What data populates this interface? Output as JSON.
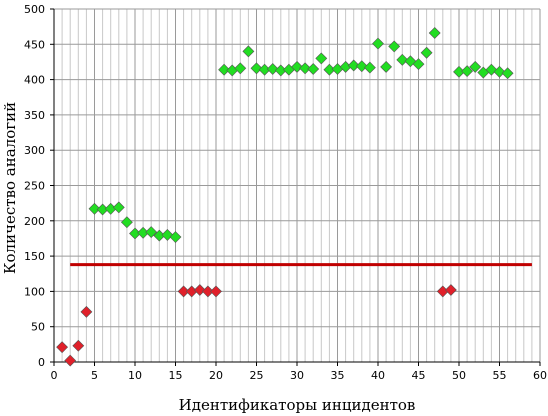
{
  "chart_data": {
    "type": "scatter",
    "xlabel": "Идентификаторы инцидентов",
    "ylabel": "Количество аналогий",
    "xlim": [
      0,
      60
    ],
    "ylim": [
      0,
      500
    ],
    "x_ticks": [
      0,
      5,
      10,
      15,
      20,
      25,
      30,
      35,
      40,
      45,
      50,
      55,
      60
    ],
    "y_ticks": [
      0,
      50,
      100,
      150,
      200,
      250,
      300,
      350,
      400,
      450,
      500
    ],
    "grid": true,
    "minor_x_step": 1,
    "threshold_line": {
      "y": 138,
      "x_from": 2,
      "x_to": 59,
      "color": "#c00000"
    },
    "series": [
      {
        "color": "#e0202a",
        "points": [
          [
            1,
            21
          ],
          [
            2,
            2
          ],
          [
            3,
            23
          ],
          [
            4,
            71
          ],
          [
            16,
            100
          ],
          [
            17,
            100
          ],
          [
            18,
            102
          ],
          [
            19,
            100
          ],
          [
            20,
            100
          ],
          [
            48,
            100
          ],
          [
            49,
            102
          ]
        ]
      },
      {
        "color": "#22dd22",
        "points": [
          [
            5,
            217
          ],
          [
            6,
            216
          ],
          [
            7,
            217
          ],
          [
            8,
            219
          ],
          [
            9,
            198
          ],
          [
            10,
            182
          ],
          [
            11,
            183
          ],
          [
            12,
            184
          ],
          [
            13,
            179
          ],
          [
            14,
            180
          ],
          [
            15,
            177
          ],
          [
            21,
            414
          ],
          [
            22,
            413
          ],
          [
            23,
            416
          ],
          [
            24,
            440
          ],
          [
            25,
            416
          ],
          [
            26,
            414
          ],
          [
            27,
            415
          ],
          [
            28,
            413
          ],
          [
            29,
            414
          ],
          [
            30,
            418
          ],
          [
            31,
            416
          ],
          [
            32,
            415
          ],
          [
            33,
            430
          ],
          [
            34,
            414
          ],
          [
            35,
            415
          ],
          [
            36,
            418
          ],
          [
            37,
            420
          ],
          [
            38,
            419
          ],
          [
            39,
            417
          ],
          [
            40,
            451
          ],
          [
            41,
            418
          ],
          [
            42,
            447
          ],
          [
            43,
            428
          ],
          [
            44,
            426
          ],
          [
            45,
            422
          ],
          [
            46,
            438
          ],
          [
            47,
            466
          ],
          [
            50,
            411
          ],
          [
            51,
            412
          ],
          [
            52,
            418
          ],
          [
            53,
            410
          ],
          [
            54,
            414
          ],
          [
            55,
            411
          ],
          [
            56,
            409
          ]
        ]
      }
    ]
  }
}
